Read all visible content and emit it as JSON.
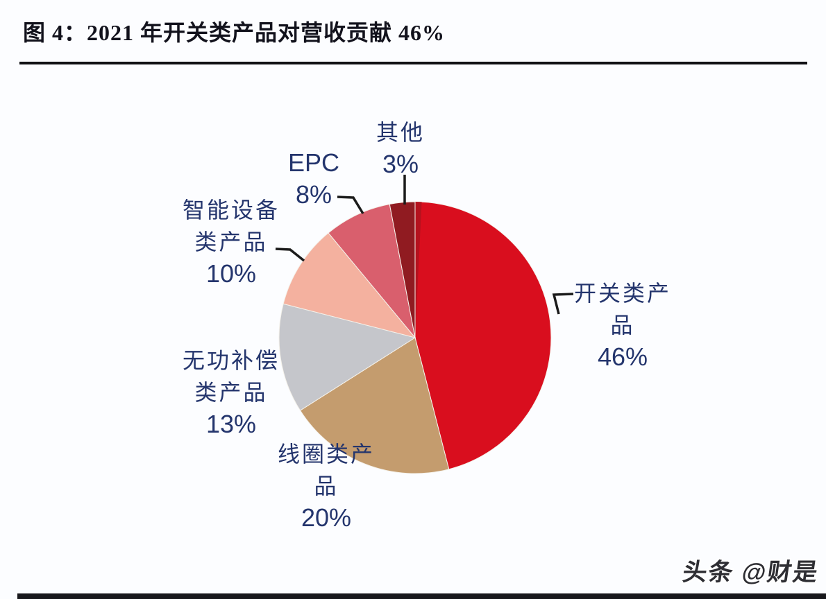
{
  "figure": {
    "title": "图 4：2021 年开关类产品对营收贡献 46%",
    "watermark": "头条 @财是"
  },
  "colors": {
    "background": "#fcfdff",
    "title_text": "#12121c",
    "title_rule": "#101014",
    "label_text": "#24356d",
    "leader_line": "#1b1b1b",
    "bottom_bar": "#18181c",
    "first_slice_edge_shade": "#b5121e"
  },
  "chart_data": {
    "type": "pie",
    "title": "2021 年开关类产品对营收贡献 46%",
    "unit": "%",
    "start_angle_deg": 0,
    "direction": "clockwise",
    "legend_position": "none",
    "categories": [
      "开关类产品",
      "线圈类产品",
      "无功补偿类产品",
      "智能设备类产品",
      "EPC",
      "其他"
    ],
    "values": [
      46,
      20,
      13,
      10,
      8,
      3
    ],
    "slice_colors": [
      "#d90e1e",
      "#c49c6e",
      "#c5c6cb",
      "#f4b19f",
      "#d95f6d",
      "#901b21"
    ],
    "labels": [
      {
        "category": "开关类产品",
        "value_text": "46%",
        "lines": [
          "开关类产",
          "品",
          "46%"
        ]
      },
      {
        "category": "线圈类产品",
        "value_text": "20%",
        "lines": [
          "线圈类产",
          "品",
          "20%"
        ]
      },
      {
        "category": "无功补偿类产品",
        "value_text": "13%",
        "lines": [
          "无功补偿",
          "类产品",
          "13%"
        ]
      },
      {
        "category": "智能设备类产品",
        "value_text": "10%",
        "lines": [
          "智能设备",
          "类产品",
          "10%"
        ]
      },
      {
        "category": "EPC",
        "value_text": "8%",
        "lines": [
          "EPC",
          "8%"
        ]
      },
      {
        "category": "其他",
        "value_text": "3%",
        "lines": [
          "其他",
          "3%"
        ]
      }
    ]
  }
}
